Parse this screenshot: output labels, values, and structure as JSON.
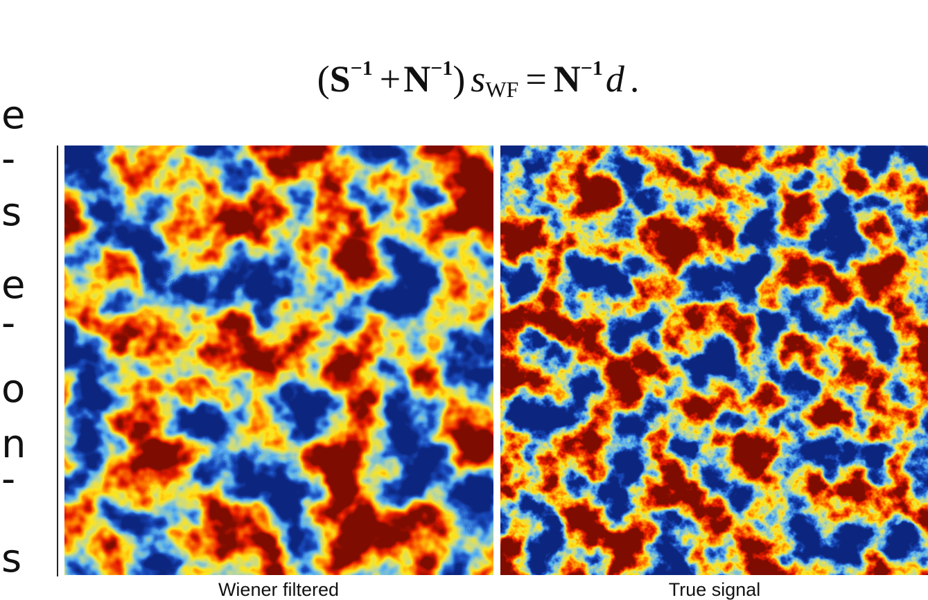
{
  "equation": {
    "open": "(",
    "S": "S",
    "exp1": "−1",
    "plus": "+",
    "N1": "N",
    "exp2": "−1",
    "close": ")",
    "s": "s",
    "sub": "WF",
    "eq": "=",
    "N2": "N",
    "exp3": "−1",
    "d": "d",
    "period": "."
  },
  "side_text": [
    "e",
    "-",
    "s",
    "e",
    "-",
    "o",
    "n",
    "-",
    "s"
  ],
  "panels": [
    {
      "caption": "Wiener filtered"
    },
    {
      "caption": "True signal"
    }
  ]
}
